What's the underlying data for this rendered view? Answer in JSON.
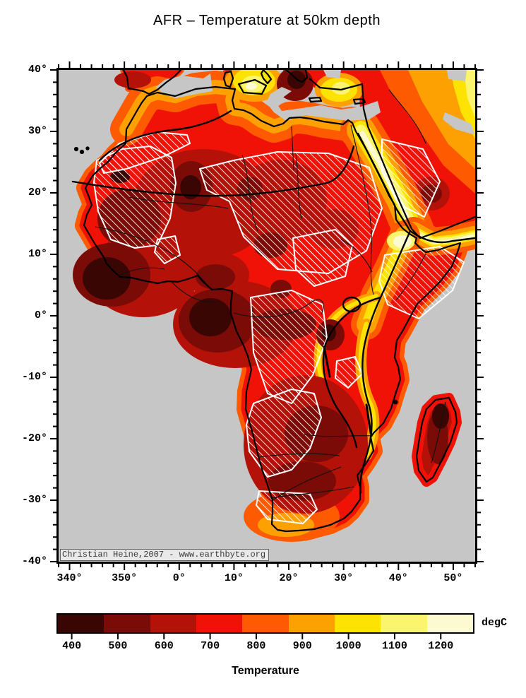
{
  "title": "AFR – Temperature at 50km depth",
  "map": {
    "attribution": "Christian Heine,2007 - www.earthbyte.org",
    "ocean_color": "#c6c6c6",
    "region": "Africa",
    "depicts": "temperature field at 50 km depth with cratons hatched"
  },
  "palette": {
    "c400": "#3a0604",
    "c500": "#7a0b06",
    "c600": "#b41109",
    "c700": "#f01206",
    "c800": "#fd5a01",
    "c900": "#fda001",
    "c1000": "#fce303",
    "c1100": "#faf46e",
    "c1200": "#fdfad2"
  },
  "x_axis": {
    "min_lon": 338,
    "max_lon": 414,
    "minor_step": 2,
    "majors": [
      {
        "lon": 340,
        "label": "340°"
      },
      {
        "lon": 350,
        "label": "350°"
      },
      {
        "lon": 360,
        "label": "0°"
      },
      {
        "lon": 370,
        "label": "10°"
      },
      {
        "lon": 380,
        "label": "20°"
      },
      {
        "lon": 390,
        "label": "30°"
      },
      {
        "lon": 400,
        "label": "40°"
      },
      {
        "lon": 410,
        "label": "50°"
      }
    ]
  },
  "y_axis": {
    "min_lat": -40,
    "max_lat": 40,
    "minor_step": 2,
    "majors": [
      {
        "lat": 40,
        "label": "40°"
      },
      {
        "lat": 30,
        "label": "30°"
      },
      {
        "lat": 20,
        "label": "20°"
      },
      {
        "lat": 10,
        "label": "10°"
      },
      {
        "lat": 0,
        "label": "0°"
      },
      {
        "lat": -10,
        "label": "-10°"
      },
      {
        "lat": -20,
        "label": "-20°"
      },
      {
        "lat": -30,
        "label": "-30°"
      },
      {
        "lat": -40,
        "label": "-40°"
      }
    ]
  },
  "colorbar": {
    "title": "Temperature",
    "unit": "degC",
    "min": 370,
    "max": 1270,
    "segments": [
      {
        "from": 370,
        "to": 470,
        "color": "#3a0604"
      },
      {
        "from": 470,
        "to": 570,
        "color": "#7a0b06"
      },
      {
        "from": 570,
        "to": 670,
        "color": "#b41109"
      },
      {
        "from": 670,
        "to": 770,
        "color": "#f01206"
      },
      {
        "from": 770,
        "to": 870,
        "color": "#fd5a01"
      },
      {
        "from": 870,
        "to": 970,
        "color": "#fda001"
      },
      {
        "from": 970,
        "to": 1070,
        "color": "#fce303"
      },
      {
        "from": 1070,
        "to": 1170,
        "color": "#faf46e"
      },
      {
        "from": 1170,
        "to": 1270,
        "color": "#fdfad2"
      }
    ],
    "ticks": [
      400,
      500,
      600,
      700,
      800,
      900,
      1000,
      1100,
      1200
    ]
  }
}
